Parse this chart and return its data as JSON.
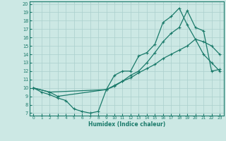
{
  "line1_x": [
    0,
    1,
    2,
    3,
    4,
    5,
    6,
    7,
    8,
    9,
    10,
    11,
    12,
    13,
    14,
    15,
    16,
    17,
    18,
    19,
    20,
    21,
    22,
    23
  ],
  "line1_y": [
    10,
    9.5,
    9.2,
    8.8,
    8.5,
    7.5,
    7.2,
    7.0,
    7.2,
    9.8,
    11.5,
    12.0,
    12.0,
    13.8,
    14.2,
    15.2,
    17.8,
    18.5,
    19.5,
    17.5,
    15.8,
    14.0,
    13.0,
    12.0
  ],
  "line2_x": [
    0,
    2,
    3,
    9,
    10,
    11,
    12,
    13,
    14,
    15,
    16,
    17,
    18,
    19,
    20,
    21,
    22,
    23
  ],
  "line2_y": [
    10,
    9.5,
    9.0,
    9.8,
    10.3,
    10.8,
    11.2,
    11.8,
    12.3,
    12.8,
    13.5,
    14.0,
    14.5,
    15.0,
    15.8,
    15.5,
    15.0,
    14.0
  ],
  "line3_x": [
    0,
    2,
    9,
    10,
    11,
    12,
    13,
    14,
    15,
    16,
    17,
    18,
    19,
    20,
    21,
    22,
    23
  ],
  "line3_y": [
    10,
    9.5,
    9.8,
    10.2,
    10.8,
    11.5,
    12.0,
    13.0,
    14.2,
    15.5,
    16.5,
    17.2,
    19.2,
    17.2,
    16.8,
    12.0,
    12.2
  ],
  "color": "#1a7a6a",
  "bg_color": "#cce8e4",
  "grid_color": "#aacfcc",
  "xlabel": "Humidex (Indice chaleur)",
  "xlim": [
    -0.5,
    23.5
  ],
  "ylim": [
    6.7,
    20.3
  ],
  "yticks": [
    7,
    8,
    9,
    10,
    11,
    12,
    13,
    14,
    15,
    16,
    17,
    18,
    19,
    20
  ],
  "xticks": [
    0,
    1,
    2,
    3,
    4,
    5,
    6,
    7,
    8,
    9,
    10,
    11,
    12,
    13,
    14,
    15,
    16,
    17,
    18,
    19,
    20,
    21,
    22,
    23
  ],
  "marker": "+"
}
